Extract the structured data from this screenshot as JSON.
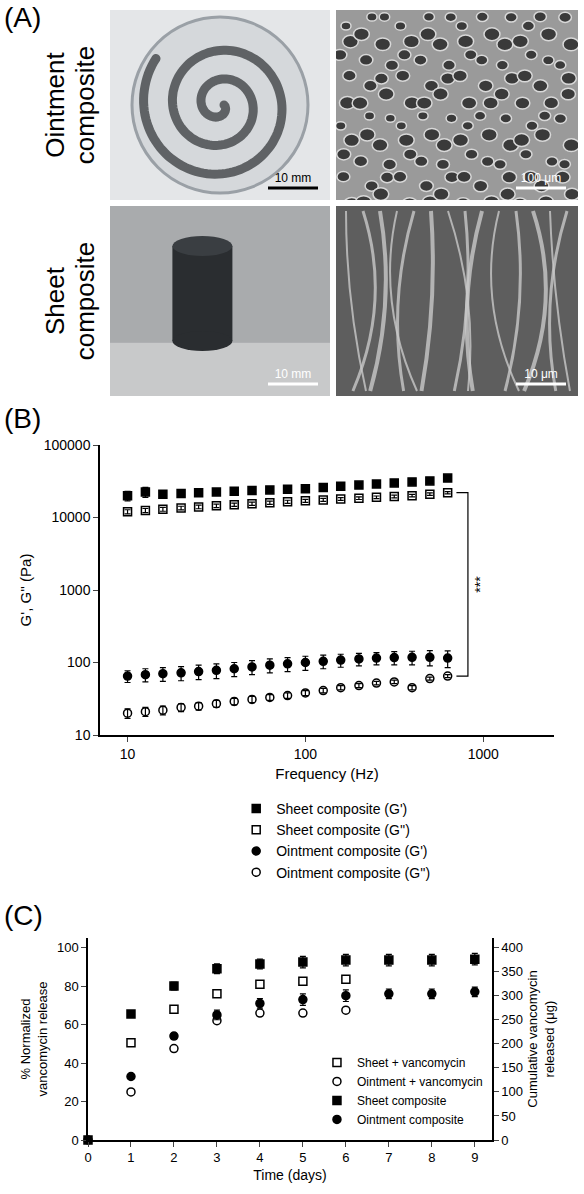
{
  "panel_a": {
    "letter": "(A)",
    "rows": [
      {
        "label": "Ointment composite",
        "scale_bars": [
          "10 mm",
          "100 μm"
        ]
      },
      {
        "label": "Sheet composite",
        "scale_bars": [
          "10 mm",
          "10 μm"
        ]
      }
    ]
  },
  "chart_data": [
    {
      "letter": "(B)",
      "type": "scatter",
      "x_label": "Frequency (Hz)",
      "y_label": "G', G'' (Pa)",
      "log": true,
      "grid": false,
      "legend": "bottom",
      "xlim": [
        7,
        2500
      ],
      "xticks": [
        10,
        100,
        1000
      ],
      "ylim": [
        10,
        100000
      ],
      "yticks": [
        10,
        100,
        1000,
        10000,
        100000
      ],
      "x": [
        10,
        12.6,
        15.8,
        20,
        25.1,
        31.6,
        39.8,
        50.1,
        63.1,
        79.4,
        100,
        126,
        158,
        200,
        251,
        316,
        398,
        501,
        631
      ],
      "series": [
        {
          "name": "Sheet composite (G')",
          "color": "#000000",
          "marker": "filled-square",
          "values": [
            20000,
            22500,
            21000,
            21500,
            22000,
            22500,
            23000,
            23500,
            24000,
            24500,
            25000,
            26000,
            27000,
            28000,
            29000,
            30000,
            31000,
            32000,
            35000
          ],
          "errors": [
            3000,
            3500,
            2000,
            1500,
            1500,
            1500,
            1500,
            1500,
            1500,
            1500,
            1500,
            1500,
            1500,
            1500,
            1500,
            1500,
            1500,
            1500,
            1500
          ]
        },
        {
          "name": "Sheet composite (G'')",
          "color": "#000000",
          "marker": "open-square",
          "values": [
            12000,
            12500,
            13000,
            13500,
            14000,
            14500,
            15000,
            15500,
            16000,
            16500,
            17000,
            17500,
            18000,
            18500,
            19000,
            19500,
            20000,
            21000,
            22000
          ],
          "errors": [
            800,
            800,
            800,
            800,
            800,
            800,
            800,
            800,
            800,
            800,
            800,
            800,
            800,
            800,
            800,
            800,
            800,
            800,
            800
          ]
        },
        {
          "name": "Ointment composite (G')",
          "color": "#000000",
          "marker": "filled-circle",
          "values": [
            65,
            68,
            70,
            72,
            75,
            78,
            82,
            87,
            92,
            96,
            100,
            104,
            108,
            112,
            115,
            117,
            118,
            118,
            115
          ],
          "errors": [
            12,
            14,
            15,
            16,
            17,
            18,
            18,
            19,
            20,
            21,
            22,
            22,
            22,
            22,
            22,
            24,
            25,
            28,
            30
          ]
        },
        {
          "name": "Ointment composite (G'')",
          "color": "#000000",
          "marker": "open-circle",
          "values": [
            20,
            21,
            22,
            24,
            25,
            27,
            29,
            31,
            33,
            35,
            38,
            41,
            45,
            48,
            52,
            54,
            45,
            60,
            65
          ],
          "errors": [
            3,
            3,
            3,
            3,
            3,
            3,
            3,
            3,
            3,
            3,
            3,
            3,
            3,
            3,
            3,
            3,
            3,
            3,
            3
          ]
        }
      ],
      "annotations": [
        {
          "text": "***"
        }
      ]
    },
    {
      "letter": "(C)",
      "type": "scatter",
      "x_label": "Time (days)",
      "y_label": "% Normalized vancomycin release",
      "y2_label": "Cumulative vancomycin released (μg)",
      "grid": false,
      "legend": "bottom right",
      "xlim": [
        0,
        9.4
      ],
      "xticks": [
        0,
        1,
        2,
        3,
        4,
        5,
        6,
        7,
        8,
        9
      ],
      "ylim": [
        0,
        105
      ],
      "yticks": [
        0,
        20,
        40,
        60,
        80,
        100
      ],
      "y2lim": [
        0,
        420
      ],
      "y2ticks": [
        0,
        50,
        100,
        150,
        200,
        250,
        300,
        350,
        400
      ],
      "series": [
        {
          "name": "Sheet + vancomycin",
          "color": "#000000",
          "marker": "open-square",
          "axis": "y2",
          "x": [
            1,
            2,
            3,
            4,
            5,
            6
          ],
          "values": [
            202,
            272,
            304,
            324,
            330,
            334
          ]
        },
        {
          "name": "Ointment + vancomycin",
          "color": "#000000",
          "marker": "open-circle",
          "axis": "y2",
          "x": [
            1,
            2,
            3,
            4,
            5,
            6
          ],
          "values": [
            100,
            190,
            248,
            264,
            264,
            270
          ]
        },
        {
          "name": "Sheet composite",
          "color": "#000000",
          "marker": "filled-square",
          "x": [
            0,
            1,
            2,
            3,
            4,
            5,
            6,
            7,
            8,
            9
          ],
          "values": [
            0,
            65.5,
            80,
            89,
            91.5,
            92.5,
            93.5,
            93.5,
            93.5,
            94
          ],
          "errors": [
            0,
            1.5,
            2,
            2.5,
            2.5,
            3,
            3,
            3,
            3,
            3
          ]
        },
        {
          "name": "Ointment composite",
          "color": "#000000",
          "marker": "filled-circle",
          "x": [
            0,
            1,
            2,
            3,
            4,
            5,
            6,
            7,
            8,
            9
          ],
          "values": [
            0,
            33,
            54,
            65,
            71,
            73,
            75,
            76,
            76,
            77
          ],
          "errors": [
            0,
            1,
            1.5,
            2.5,
            2.5,
            3,
            3,
            2.5,
            2.5,
            2.5
          ]
        }
      ]
    }
  ]
}
